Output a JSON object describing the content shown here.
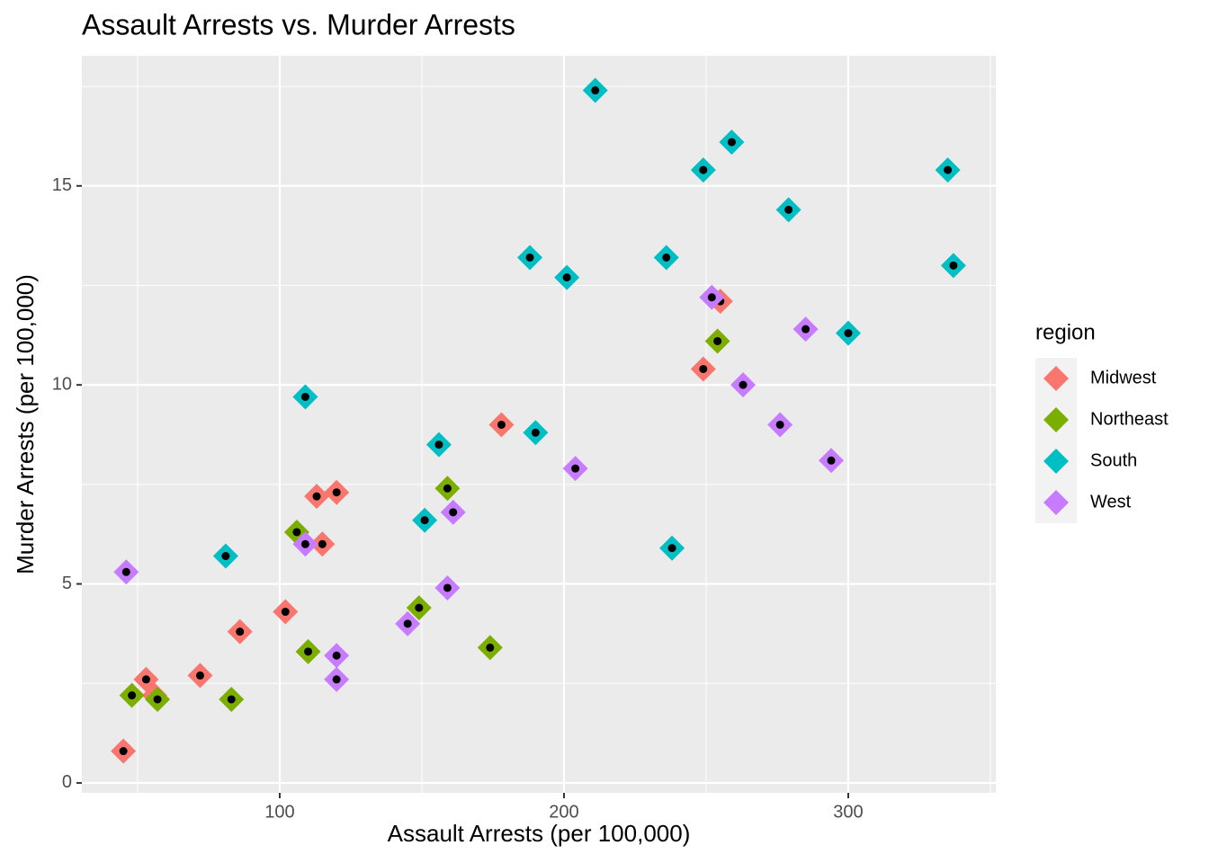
{
  "chart_data": {
    "type": "scatter",
    "title": "Assault Arrests vs. Murder Arrests",
    "x_label": "Assault Arrests (per 100,000)",
    "y_label": "Murder Arrests (per 100,000)",
    "legend_title": "region",
    "legend_position": "right",
    "grid": true,
    "xlim": [
      30.4,
      351.9
    ],
    "xticks": [
      100,
      200,
      300
    ],
    "ylim": [
      -0.25,
      18.27
    ],
    "yticks": [
      0,
      5,
      10,
      15
    ],
    "series": [
      {
        "name": "Midwest",
        "color": "#F8766D",
        "x": [
          249,
          113,
          56,
          115,
          255,
          72,
          178,
          102,
          45,
          120,
          86,
          53
        ],
        "values": [
          10.4,
          7.2,
          2.2,
          6.0,
          12.1,
          2.7,
          9.0,
          4.3,
          0.8,
          7.3,
          3.8,
          2.6
        ]
      },
      {
        "name": "Northeast",
        "color": "#7CAE00",
        "x": [
          110,
          83,
          149,
          57,
          159,
          254,
          106,
          174,
          48
        ],
        "values": [
          3.3,
          2.1,
          4.4,
          2.1,
          7.4,
          11.1,
          6.3,
          3.4,
          2.2
        ]
      },
      {
        "name": "South",
        "color": "#00BFC4",
        "x": [
          236,
          190,
          238,
          335,
          211,
          109,
          249,
          300,
          259,
          337,
          151,
          279,
          188,
          201,
          156,
          81
        ],
        "values": [
          13.2,
          8.8,
          5.9,
          15.4,
          17.4,
          9.7,
          15.4,
          11.3,
          16.1,
          13.0,
          6.6,
          14.4,
          13.2,
          12.7,
          8.5,
          5.7
        ]
      },
      {
        "name": "West",
        "color": "#C77CFF",
        "x": [
          263,
          294,
          276,
          204,
          46,
          120,
          109,
          252,
          285,
          159,
          120,
          145,
          161
        ],
        "values": [
          10.0,
          8.1,
          9.0,
          7.9,
          5.3,
          2.6,
          6.0,
          12.2,
          11.4,
          4.9,
          3.2,
          4.0,
          6.8
        ]
      }
    ]
  }
}
